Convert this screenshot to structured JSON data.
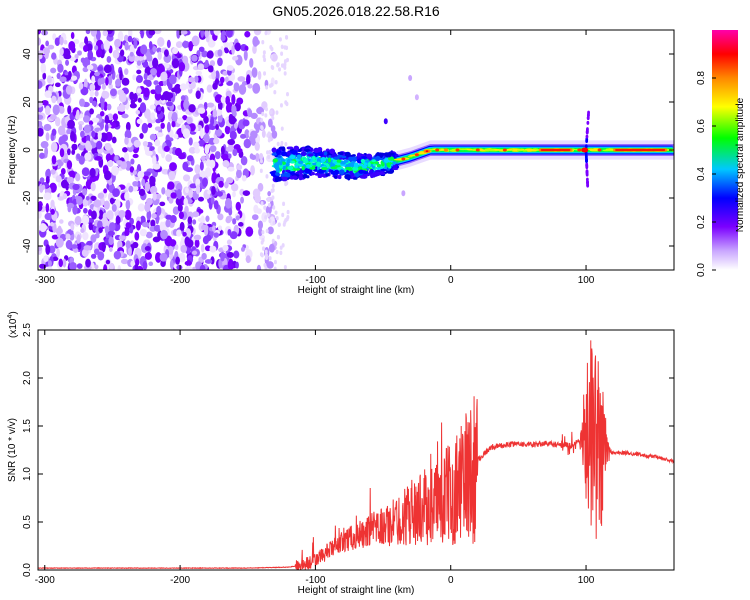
{
  "title": "GN05.2026.018.22.58.R16",
  "chart_data": [
    {
      "type": "heatmap",
      "xlabel": "Height of straight line (km)",
      "ylabel": "Frequency (Hz)",
      "xlim": [
        -305,
        165
      ],
      "ylim": [
        -50,
        50
      ],
      "xticks": [
        -300,
        -200,
        -100,
        0,
        100
      ],
      "yticks": [
        -40,
        -20,
        0,
        20,
        40
      ],
      "colorbar": {
        "label": "Normalized spectral amplitude",
        "range": [
          0,
          1
        ],
        "ticks": [
          "0.0",
          "0.2",
          "0.4",
          "0.6",
          "0.8"
        ],
        "colormap": [
          "#ffffff",
          "#7b00ff",
          "#0000ff",
          "#00c8ff",
          "#00ff00",
          "#ffff00",
          "#ff8800",
          "#ff0000",
          "#ff00aa"
        ]
      },
      "features": {
        "noise_region_x": [
          -305,
          -130
        ],
        "band_center_freq_hz": [
          {
            "x": -130,
            "f": -6
          },
          {
            "x": -100,
            "f": -5
          },
          {
            "x": -70,
            "f": -7
          },
          {
            "x": -50,
            "f": -6
          },
          {
            "x": -30,
            "f": -3
          },
          {
            "x": -15,
            "f": 0
          },
          {
            "x": 0,
            "f": 0
          },
          {
            "x": 50,
            "f": 0
          },
          {
            "x": 100,
            "f": 0
          },
          {
            "x": 165,
            "f": 0
          }
        ],
        "spike_x_km": 100
      }
    },
    {
      "type": "line",
      "xlabel": "Height of straight line (km)",
      "ylabel": "SNR (10 * v/v)",
      "yscale_label": "(x10",
      "yscale_exp": "4",
      "yscale_suffix": ")",
      "xlim": [
        -305,
        165
      ],
      "ylim": [
        0,
        2.5
      ],
      "xticks": [
        -300,
        -200,
        -100,
        0,
        100
      ],
      "yticks": [
        "0.0",
        "0.5",
        "1.0",
        "1.5",
        "2.0",
        "2.5"
      ],
      "color": "#ee3333",
      "series": [
        {
          "x": [
            -305,
            -250,
            -200,
            -150,
            -120,
            -110,
            -100,
            -90,
            -80,
            -70,
            -60,
            -50,
            -40,
            -30,
            -20,
            -10,
            0,
            10,
            20,
            30,
            40,
            50,
            60,
            70,
            80,
            90,
            95,
            100,
            105,
            110,
            115,
            120,
            130,
            140,
            150,
            165
          ],
          "values": [
            0.02,
            0.02,
            0.02,
            0.02,
            0.03,
            0.05,
            0.1,
            0.2,
            0.3,
            0.35,
            0.4,
            0.45,
            0.5,
            0.6,
            0.65,
            0.7,
            0.8,
            0.95,
            1.15,
            1.28,
            1.3,
            1.32,
            1.3,
            1.32,
            1.3,
            1.3,
            1.35,
            1.4,
            1.5,
            1.2,
            1.25,
            1.22,
            1.22,
            1.2,
            1.18,
            1.13
          ]
        }
      ]
    }
  ]
}
